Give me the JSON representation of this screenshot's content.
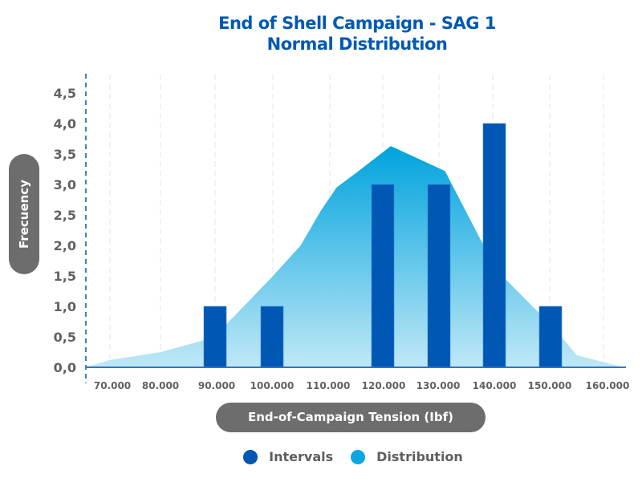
{
  "chart_data": {
    "type": "bar",
    "title": "End of Shell Campaign - SAG 1",
    "subtitle": "Normal Distribution",
    "xlabel": "End-of-Campaign Tension (Ibf)",
    "ylabel": "Frecuency",
    "ylim": [
      0,
      4.5
    ],
    "xlim": [
      65.5,
      163
    ],
    "y_ticks": [
      "0,0",
      "0,5",
      "1,0",
      "1,5",
      "2,0",
      "2,5",
      "3,0",
      "3,5",
      "4,0",
      "4,5"
    ],
    "y_tick_values": [
      0,
      0.5,
      1,
      1.5,
      2,
      2.5,
      3,
      3.5,
      4,
      4.5
    ],
    "x_ticks": [
      "70.000",
      "80.000",
      "90.000",
      "100.000",
      "110.000",
      "120.000",
      "130.000",
      "140.000",
      "150.000",
      "160.000"
    ],
    "x_tick_values": [
      70,
      80,
      90,
      100,
      110,
      120,
      130,
      140,
      150,
      160
    ],
    "grid": "vertical-dashed",
    "legend_position": "bottom",
    "series": [
      {
        "name": "Intervals",
        "type": "bar",
        "color": "#0057b4",
        "x": [
          90,
          100,
          120,
          130,
          140,
          150
        ],
        "values": [
          1,
          1,
          3,
          3,
          4,
          1
        ]
      },
      {
        "name": "Distribution",
        "type": "area",
        "color": "#0aa8e0",
        "x": [
          65.5,
          70,
          79.2,
          87.2,
          91,
          99.5,
          104.5,
          108,
          111,
          114.7,
          120.8,
          130.6,
          137,
          141.5,
          147,
          151.5,
          154.4,
          163
        ],
        "values": [
          0,
          0.12,
          0.25,
          0.45,
          0.7,
          1.5,
          2.0,
          2.55,
          2.95,
          3.2,
          3.63,
          3.22,
          2.1,
          1.45,
          0.95,
          0.52,
          0.2,
          0
        ]
      }
    ]
  }
}
